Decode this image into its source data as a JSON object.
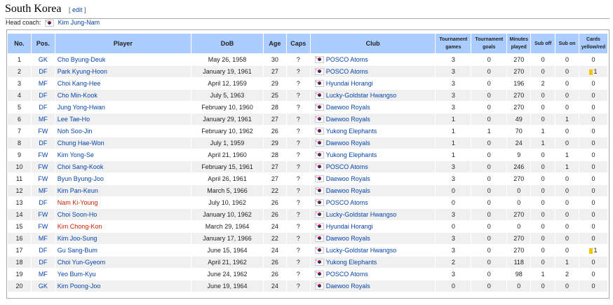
{
  "section": {
    "title": "South Korea",
    "edit_label": "edit"
  },
  "coach": {
    "label": "Head coach:",
    "name": "Kim Jung-Nam"
  },
  "colors": {
    "header_bg": "#aaccff",
    "link": "#0645ad",
    "redlink": "#cc2200",
    "yellow_card": "#f6c500"
  },
  "columns": [
    "No.",
    "Pos.",
    "Player",
    "DoB",
    "Age",
    "Caps",
    "Club",
    "Tournament games",
    "Tournament goals",
    "Minutes played",
    "Sub off",
    "Sub on",
    "Cards yellow/red"
  ],
  "rows": [
    {
      "no": "1",
      "pos": "GK",
      "player": "Cho Byung-Deuk",
      "dob": "May 26, 1958",
      "age": "30",
      "caps": "?",
      "club": "POSCO Atoms",
      "games": "3",
      "goals": "0",
      "minutes": "270",
      "sub_off": "0",
      "sub_on": "0",
      "cards": "0"
    },
    {
      "no": "2",
      "pos": "DF",
      "player": "Park Kyung-Hoon",
      "dob": "January 19, 1961",
      "age": "27",
      "caps": "?",
      "club": "POSCO Atoms",
      "games": "3",
      "goals": "0",
      "minutes": "270",
      "sub_off": "0",
      "sub_on": "0",
      "cards": "1",
      "yellow": true
    },
    {
      "no": "3",
      "pos": "MF",
      "player": "Choi Kang-Hee",
      "dob": "April 12, 1959",
      "age": "29",
      "caps": "?",
      "club": "Hyundai Horangi",
      "games": "3",
      "goals": "0",
      "minutes": "196",
      "sub_off": "2",
      "sub_on": "0",
      "cards": "0"
    },
    {
      "no": "4",
      "pos": "DF",
      "player": "Cho Min-Kook",
      "dob": "July 5, 1963",
      "age": "25",
      "caps": "?",
      "club": "Lucky-Goldstar Hwangso",
      "games": "3",
      "goals": "0",
      "minutes": "270",
      "sub_off": "0",
      "sub_on": "0",
      "cards": "0"
    },
    {
      "no": "5",
      "pos": "DF",
      "player": "Jung Yong-Hwan",
      "dob": "February 10, 1960",
      "age": "28",
      "caps": "?",
      "club": "Daewoo Royals",
      "games": "3",
      "goals": "0",
      "minutes": "270",
      "sub_off": "0",
      "sub_on": "0",
      "cards": "0"
    },
    {
      "no": "6",
      "pos": "MF",
      "player": "Lee Tae-Ho",
      "dob": "January 29, 1961",
      "age": "27",
      "caps": "?",
      "club": "Daewoo Royals",
      "games": "1",
      "goals": "0",
      "minutes": "49",
      "sub_off": "0",
      "sub_on": "1",
      "cards": "0"
    },
    {
      "no": "7",
      "pos": "FW",
      "player": "Noh Soo-Jin",
      "dob": "February 10, 1962",
      "age": "26",
      "caps": "?",
      "club": "Yukong Elephants",
      "games": "1",
      "goals": "1",
      "minutes": "70",
      "sub_off": "1",
      "sub_on": "0",
      "cards": "0"
    },
    {
      "no": "8",
      "pos": "DF",
      "player": "Chung Hae-Won",
      "dob": "July 1, 1959",
      "age": "29",
      "caps": "?",
      "club": "Daewoo Royals",
      "games": "1",
      "goals": "0",
      "minutes": "24",
      "sub_off": "1",
      "sub_on": "0",
      "cards": "0"
    },
    {
      "no": "9",
      "pos": "FW",
      "player": "Kim Yong-Se",
      "dob": "April 21, 1960",
      "age": "28",
      "caps": "?",
      "club": "Yukong Elephants",
      "games": "1",
      "goals": "0",
      "minutes": "9",
      "sub_off": "0",
      "sub_on": "1",
      "cards": "0"
    },
    {
      "no": "10",
      "pos": "FW",
      "player": "Choi Sang-Kook",
      "dob": "February 15, 1961",
      "age": "27",
      "caps": "?",
      "club": "POSCO Atoms",
      "games": "3",
      "goals": "0",
      "minutes": "246",
      "sub_off": "0",
      "sub_on": "1",
      "cards": "0"
    },
    {
      "no": "11",
      "pos": "FW",
      "player": "Byun Byung-Joo",
      "dob": "April 26, 1961",
      "age": "27",
      "caps": "?",
      "club": "Daewoo Royals",
      "games": "3",
      "goals": "0",
      "minutes": "270",
      "sub_off": "0",
      "sub_on": "0",
      "cards": "0"
    },
    {
      "no": "12",
      "pos": "MF",
      "player": "Kim Pan-Keun",
      "dob": "March 5, 1966",
      "age": "22",
      "caps": "?",
      "club": "Daewoo Royals",
      "games": "0",
      "goals": "0",
      "minutes": "0",
      "sub_off": "0",
      "sub_on": "0",
      "cards": "0"
    },
    {
      "no": "13",
      "pos": "DF",
      "player": "Nam Ki-Young",
      "redlink": true,
      "dob": "July 10, 1962",
      "age": "26",
      "caps": "?",
      "club": "POSCO Atoms",
      "games": "0",
      "goals": "0",
      "minutes": "0",
      "sub_off": "0",
      "sub_on": "0",
      "cards": "0"
    },
    {
      "no": "14",
      "pos": "FW",
      "player": "Choi Soon-Ho",
      "dob": "January 10, 1962",
      "age": "26",
      "caps": "?",
      "club": "Lucky-Goldstar Hwangso",
      "games": "3",
      "goals": "0",
      "minutes": "270",
      "sub_off": "0",
      "sub_on": "0",
      "cards": "0"
    },
    {
      "no": "15",
      "pos": "FW",
      "player": "Kim Chong-Kon",
      "redlink": true,
      "dob": "March 29, 1964",
      "age": "24",
      "caps": "?",
      "club": "Hyundai Horangi",
      "games": "0",
      "goals": "0",
      "minutes": "0",
      "sub_off": "0",
      "sub_on": "0",
      "cards": "0"
    },
    {
      "no": "16",
      "pos": "MF",
      "player": "Kim Joo-Sung",
      "dob": "January 17, 1966",
      "age": "22",
      "caps": "?",
      "club": "Daewoo Royals",
      "games": "3",
      "goals": "0",
      "minutes": "270",
      "sub_off": "0",
      "sub_on": "0",
      "cards": "0"
    },
    {
      "no": "17",
      "pos": "DF",
      "player": "Gu Sang-Bum",
      "dob": "June 15, 1964",
      "age": "24",
      "caps": "?",
      "club": "Lucky-Goldstar Hwangso",
      "games": "3",
      "goals": "0",
      "minutes": "270",
      "sub_off": "0",
      "sub_on": "0",
      "cards": "1",
      "yellow": true
    },
    {
      "no": "18",
      "pos": "DF",
      "player": "Choi Yun-Gyeom",
      "dob": "April 21, 1962",
      "age": "26",
      "caps": "?",
      "club": "Yukong Elephants",
      "games": "2",
      "goals": "0",
      "minutes": "118",
      "sub_off": "0",
      "sub_on": "1",
      "cards": "0"
    },
    {
      "no": "19",
      "pos": "MF",
      "player": "Yeo Bum-Kyu",
      "dob": "June 24, 1962",
      "age": "26",
      "caps": "?",
      "club": "POSCO Atoms",
      "games": "3",
      "goals": "0",
      "minutes": "98",
      "sub_off": "1",
      "sub_on": "2",
      "cards": "0"
    },
    {
      "no": "20",
      "pos": "GK",
      "player": "Kim Poong-Joo",
      "dob": "June 19, 1964",
      "age": "24",
      "caps": "?",
      "club": "Daewoo Royals",
      "games": "0",
      "goals": "0",
      "minutes": "0",
      "sub_off": "0",
      "sub_on": "0",
      "cards": "0"
    }
  ]
}
